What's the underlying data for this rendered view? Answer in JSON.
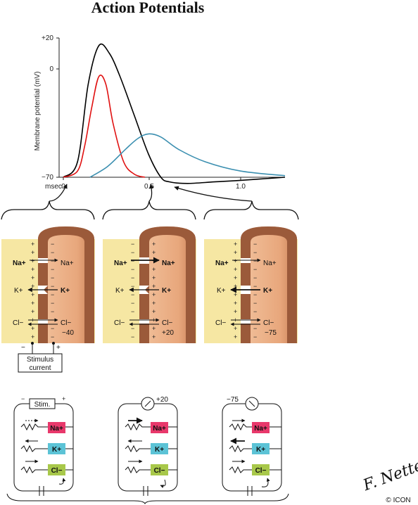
{
  "title": "Action Potentials",
  "graph": {
    "ylabel": "Membrane potential (mV)",
    "y_ticks": [
      "+20",
      "0",
      "−70"
    ],
    "x_unit_label": "msec",
    "x_ticks": [
      "0",
      "0.5",
      "1.0"
    ]
  },
  "chart_data": {
    "type": "line",
    "ylabel": "Membrane potential (mV)",
    "x_ticks": [
      "0",
      "0.5",
      "1.0"
    ],
    "y_ticks": [
      "+20",
      "0",
      "−70"
    ],
    "xlim": [
      -0.1,
      1.25
    ],
    "ylim": [
      -70,
      20
    ],
    "series": [
      {
        "color": "#000000",
        "x": [
          0.0,
          0.08,
          0.14,
          0.2,
          0.26,
          0.32,
          0.4,
          0.48,
          0.55,
          0.6,
          0.7,
          0.85,
          1.0,
          1.25
        ],
        "y": [
          -70,
          -60,
          -10,
          15,
          10,
          -5,
          -30,
          -55,
          -70,
          -73,
          -74,
          -73,
          -72,
          -70
        ]
      },
      {
        "color": "#e01010",
        "x": [
          0.0,
          0.08,
          0.12,
          0.16,
          0.2,
          0.24,
          0.28,
          0.34,
          0.4,
          0.46
        ],
        "y": [
          -70,
          -66,
          -50,
          -25,
          -5,
          -10,
          -35,
          -60,
          -68,
          -70
        ]
      },
      {
        "color": "#3b8fb0",
        "x": [
          0.15,
          0.25,
          0.35,
          0.42,
          0.48,
          0.55,
          0.65,
          0.8,
          1.0,
          1.25
        ],
        "y": [
          -70,
          -63,
          -52,
          -45,
          -42,
          -44,
          -52,
          -60,
          -66,
          -69
        ]
      }
    ]
  },
  "panels": [
    {
      "na_out": "Na+",
      "na_in": "Na+",
      "k_out": "K+",
      "k_in": "K+",
      "cl_out": "Cl−",
      "cl_in": "Cl−",
      "potential": "−40"
    },
    {
      "na_out": "Na+",
      "na_in": "Na+",
      "k_out": "K+",
      "k_in": "K+",
      "cl_out": "Cl−",
      "cl_in": "Cl−",
      "potential": "+20"
    },
    {
      "na_out": "Na+",
      "na_in": "Na+",
      "k_out": "K+",
      "k_in": "K+",
      "cl_out": "Cl−",
      "cl_in": "Cl−",
      "potential": "−75"
    }
  ],
  "stimulus": {
    "label_line1": "Stimulus",
    "label_line2": "current",
    "minus": "−",
    "plus": "+"
  },
  "circuits": [
    {
      "top_label": "Stim.",
      "na": "Na+",
      "k": "K+",
      "cl": "Cl−",
      "meter": ""
    },
    {
      "top_label": "",
      "na": "Na+",
      "k": "K+",
      "cl": "Cl−",
      "meter": "+20"
    },
    {
      "top_label": "",
      "na": "Na+",
      "k": "K+",
      "cl": "Cl−",
      "meter": "−75"
    }
  ],
  "colors": {
    "na": "#e8386b",
    "k": "#5cc3d6",
    "cl": "#a8c84a",
    "outside": "#f6e7a3",
    "membrane": "#9b5a3a",
    "inside": "#eab88f"
  },
  "signature": "F. Netter M.D.",
  "copyright": "© ICON"
}
